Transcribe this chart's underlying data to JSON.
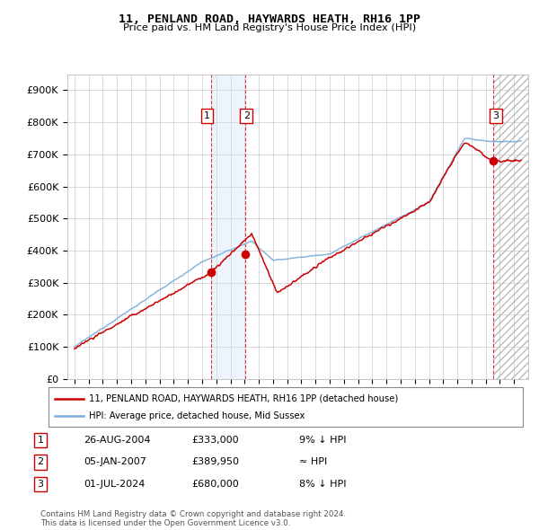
{
  "title": "11, PENLAND ROAD, HAYWARDS HEATH, RH16 1PP",
  "subtitle": "Price paid vs. HM Land Registry's House Price Index (HPI)",
  "ylim": [
    0,
    950000
  ],
  "yticks": [
    0,
    100000,
    200000,
    300000,
    400000,
    500000,
    600000,
    700000,
    800000,
    900000
  ],
  "ytick_labels": [
    "£0",
    "£100K",
    "£200K",
    "£300K",
    "£400K",
    "£500K",
    "£600K",
    "£700K",
    "£800K",
    "£900K"
  ],
  "hpi_color": "#7aaedc",
  "price_color": "#cc0000",
  "sale_marker_color": "#cc0000",
  "background_color": "#ffffff",
  "grid_color": "#cccccc",
  "shade_color": "#cce0f5",
  "hatch_color": "#cccccc",
  "legend_label_price": "11, PENLAND ROAD, HAYWARDS HEATH, RH16 1PP (detached house)",
  "legend_label_hpi": "HPI: Average price, detached house, Mid Sussex",
  "transactions": [
    {
      "num": 1,
      "date_label": "26-AUG-2004",
      "price": 333000,
      "hpi_rel": "9% ↓ HPI",
      "x_year": 2004.65
    },
    {
      "num": 2,
      "date_label": "05-JAN-2007",
      "price": 389950,
      "hpi_rel": "≈ HPI",
      "x_year": 2007.02
    },
    {
      "num": 3,
      "date_label": "01-JUL-2024",
      "price": 680000,
      "hpi_rel": "8% ↓ HPI",
      "x_year": 2024.5
    }
  ],
  "shade_x_start": 2004.65,
  "shade_x_end": 2007.02,
  "hatch_x_start": 2024.5,
  "footer": "Contains HM Land Registry data © Crown copyright and database right 2024.\nThis data is licensed under the Open Government Licence v3.0.",
  "xlim_start": 1994.5,
  "xlim_end": 2027.0,
  "xtick_start": 1995,
  "xtick_end": 2027
}
